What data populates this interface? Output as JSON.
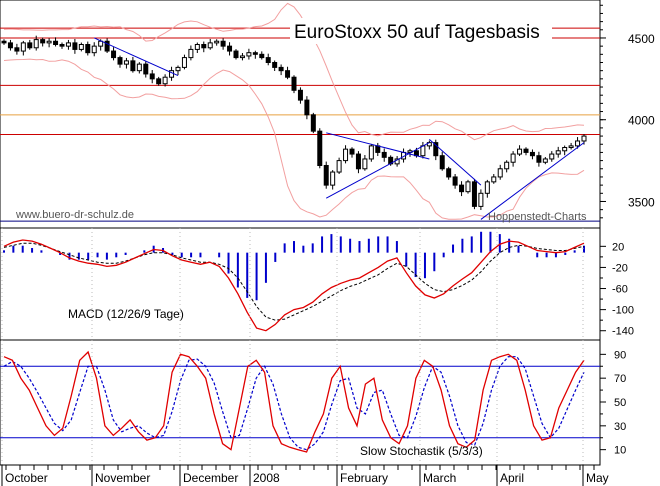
{
  "chart_data": [
    {
      "type": "candlestick",
      "title": "EuroStoxx 50 auf Tagesbasis",
      "watermark_left": "www.buero-dr-schulz.de",
      "watermark_right": "Hoppenstedt-Charts",
      "ylim": [
        3350,
        4720
      ],
      "yticks": [
        "4500",
        "4000",
        "3500"
      ],
      "ytick_values": [
        4500,
        4000,
        3500
      ],
      "horizontal_levels_red": [
        4560,
        4500,
        4210,
        3910
      ],
      "horizontal_levels_orange": [
        4030
      ],
      "horizontal_levels_navy": [
        3380
      ],
      "months": [
        "October",
        "November",
        "December",
        "2008",
        "February",
        "March",
        "April",
        "May"
      ],
      "close_series": [
        4470,
        4440,
        4420,
        4470,
        4440,
        4490,
        4470,
        4480,
        4460,
        4450,
        4470,
        4430,
        4460,
        4410,
        4450,
        4480,
        4420,
        4380,
        4340,
        4360,
        4300,
        4340,
        4280,
        4250,
        4220,
        4260,
        4300,
        4320,
        4380,
        4430,
        4460,
        4440,
        4470,
        4480,
        4450,
        4420,
        4380,
        4390,
        4410,
        4400,
        4380,
        4350,
        4320,
        4300,
        4260,
        4180,
        4120,
        4030,
        3930,
        3720,
        3600,
        3680,
        3750,
        3820,
        3790,
        3700,
        3760,
        3840,
        3800,
        3770,
        3730,
        3760,
        3800,
        3810,
        3780,
        3840,
        3860,
        3780,
        3700,
        3650,
        3600,
        3560,
        3620,
        3470,
        3550,
        3620,
        3650,
        3700,
        3740,
        3790,
        3820,
        3800,
        3780,
        3740,
        3760,
        3790,
        3810,
        3830,
        3840,
        3870,
        3900
      ],
      "macd": [
        20,
        28,
        32,
        30,
        24,
        16,
        8,
        -2,
        -8,
        -12,
        -14,
        -18,
        -16,
        -10,
        -2,
        6,
        14,
        12,
        2,
        -6,
        -10,
        -14,
        -10,
        -18,
        -40,
        -70,
        -105,
        -135,
        -140,
        -128,
        -110,
        -100,
        -96,
        -86,
        -70,
        -58,
        -50,
        -44,
        -40,
        -30,
        -20,
        -8,
        -2,
        -30,
        -55,
        -72,
        -78,
        -70,
        -55,
        -42,
        -30,
        -10,
        10,
        24,
        30,
        28,
        20,
        12,
        10,
        8,
        10,
        18,
        26
      ],
      "macd_signal": [
        18,
        22,
        26,
        26,
        22,
        16,
        10,
        4,
        -2,
        -6,
        -10,
        -12,
        -12,
        -8,
        -2,
        4,
        8,
        8,
        4,
        -2,
        -6,
        -10,
        -10,
        -14,
        -22,
        -40,
        -66,
        -94,
        -114,
        -120,
        -118,
        -110,
        -102,
        -94,
        -84,
        -74,
        -64,
        -56,
        -50,
        -42,
        -34,
        -22,
        -12,
        -18,
        -34,
        -50,
        -62,
        -66,
        -62,
        -54,
        -44,
        -28,
        -8,
        8,
        18,
        22,
        20,
        16,
        14,
        12,
        12,
        16,
        20
      ],
      "macd_yticks": [
        "20",
        "-20",
        "-60",
        "-100",
        "-140",
        "0",
        "-40",
        "-80",
        "-120"
      ],
      "macd_ytick_values": [
        20,
        -20,
        -60,
        -100,
        -140,
        0,
        -40,
        -80,
        -120
      ],
      "macd_label": "MACD (12/26/9 Tage)",
      "stoch_k": [
        88,
        85,
        70,
        60,
        45,
        30,
        22,
        28,
        55,
        85,
        92,
        70,
        30,
        22,
        28,
        35,
        25,
        18,
        20,
        30,
        75,
        90,
        88,
        80,
        70,
        40,
        15,
        10,
        45,
        80,
        85,
        75,
        30,
        15,
        12,
        10,
        8,
        25,
        40,
        70,
        80,
        45,
        30,
        65,
        70,
        35,
        20,
        15,
        30,
        70,
        85,
        80,
        60,
        30,
        15,
        12,
        18,
        60,
        85,
        88,
        90,
        85,
        60,
        30,
        18,
        20,
        45,
        60,
        75,
        85
      ],
      "stoch_d": [
        80,
        84,
        80,
        70,
        58,
        45,
        32,
        26,
        35,
        58,
        80,
        80,
        60,
        35,
        25,
        28,
        30,
        24,
        20,
        22,
        42,
        68,
        85,
        86,
        80,
        66,
        42,
        20,
        22,
        45,
        70,
        80,
        65,
        40,
        20,
        12,
        10,
        15,
        25,
        48,
        68,
        70,
        45,
        40,
        58,
        60,
        40,
        22,
        20,
        38,
        62,
        80,
        75,
        55,
        30,
        16,
        14,
        32,
        60,
        80,
        88,
        88,
        78,
        55,
        32,
        20,
        28,
        44,
        60,
        75
      ],
      "stoch_yticks": [
        "90",
        "70",
        "50",
        "30",
        "10",
        "80",
        "60",
        "40",
        "20"
      ],
      "stoch_ytick_values": [
        90,
        70,
        50,
        30,
        10,
        80,
        60,
        40,
        20
      ],
      "stoch_levels": [
        80,
        20
      ],
      "stoch_label": "Slow Stochastik (5/3/3)",
      "colors": {
        "candle": "#000000",
        "hline_red": "#cc0000",
        "hline_orange": "#e8a040",
        "hline_navy": "#000080",
        "trendline": "#0000cc",
        "bands": "#f2a0a0",
        "macd_line": "#e00000",
        "macd_signal": "#000000",
        "macd_hist": "#0000cc",
        "stoch_k": "#e00000",
        "stoch_d": "#0000cc",
        "stoch_level": "#0000cc"
      }
    }
  ]
}
